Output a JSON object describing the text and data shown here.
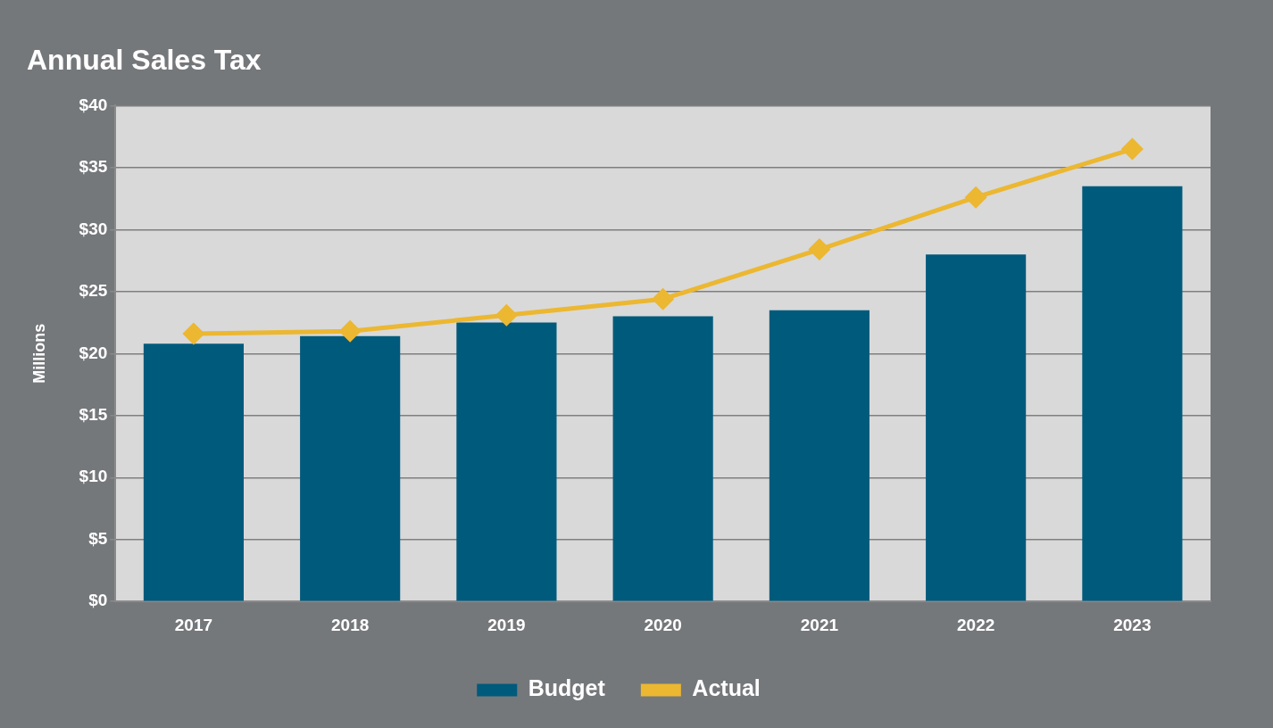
{
  "chart_data": {
    "type": "bar",
    "title": "Annual Sales Tax",
    "ylabel": "Millions",
    "categories": [
      "2017",
      "2018",
      "2019",
      "2020",
      "2021",
      "2022",
      "2023"
    ],
    "series": [
      {
        "name": "Budget",
        "color": "#005a7c",
        "values": [
          20.8,
          21.4,
          22.5,
          23.0,
          23.5,
          28.0,
          33.5
        ]
      },
      {
        "name": "Actual",
        "type": "line",
        "color": "#ecb731",
        "marker": "diamond",
        "values": [
          21.6,
          21.8,
          23.1,
          24.4,
          28.4,
          32.6,
          36.5
        ]
      }
    ],
    "ylim": [
      0,
      40
    ],
    "yticks": [
      {
        "value": 0,
        "label": "$0"
      },
      {
        "value": 5,
        "label": "$5"
      },
      {
        "value": 10,
        "label": "$10"
      },
      {
        "value": 15,
        "label": "$15"
      },
      {
        "value": 20,
        "label": "$20"
      },
      {
        "value": 25,
        "label": "$25"
      },
      {
        "value": 30,
        "label": "$30"
      },
      {
        "value": 35,
        "label": "$35"
      },
      {
        "value": 40,
        "label": "$40"
      }
    ],
    "grid": "y",
    "legend": "bottom"
  }
}
